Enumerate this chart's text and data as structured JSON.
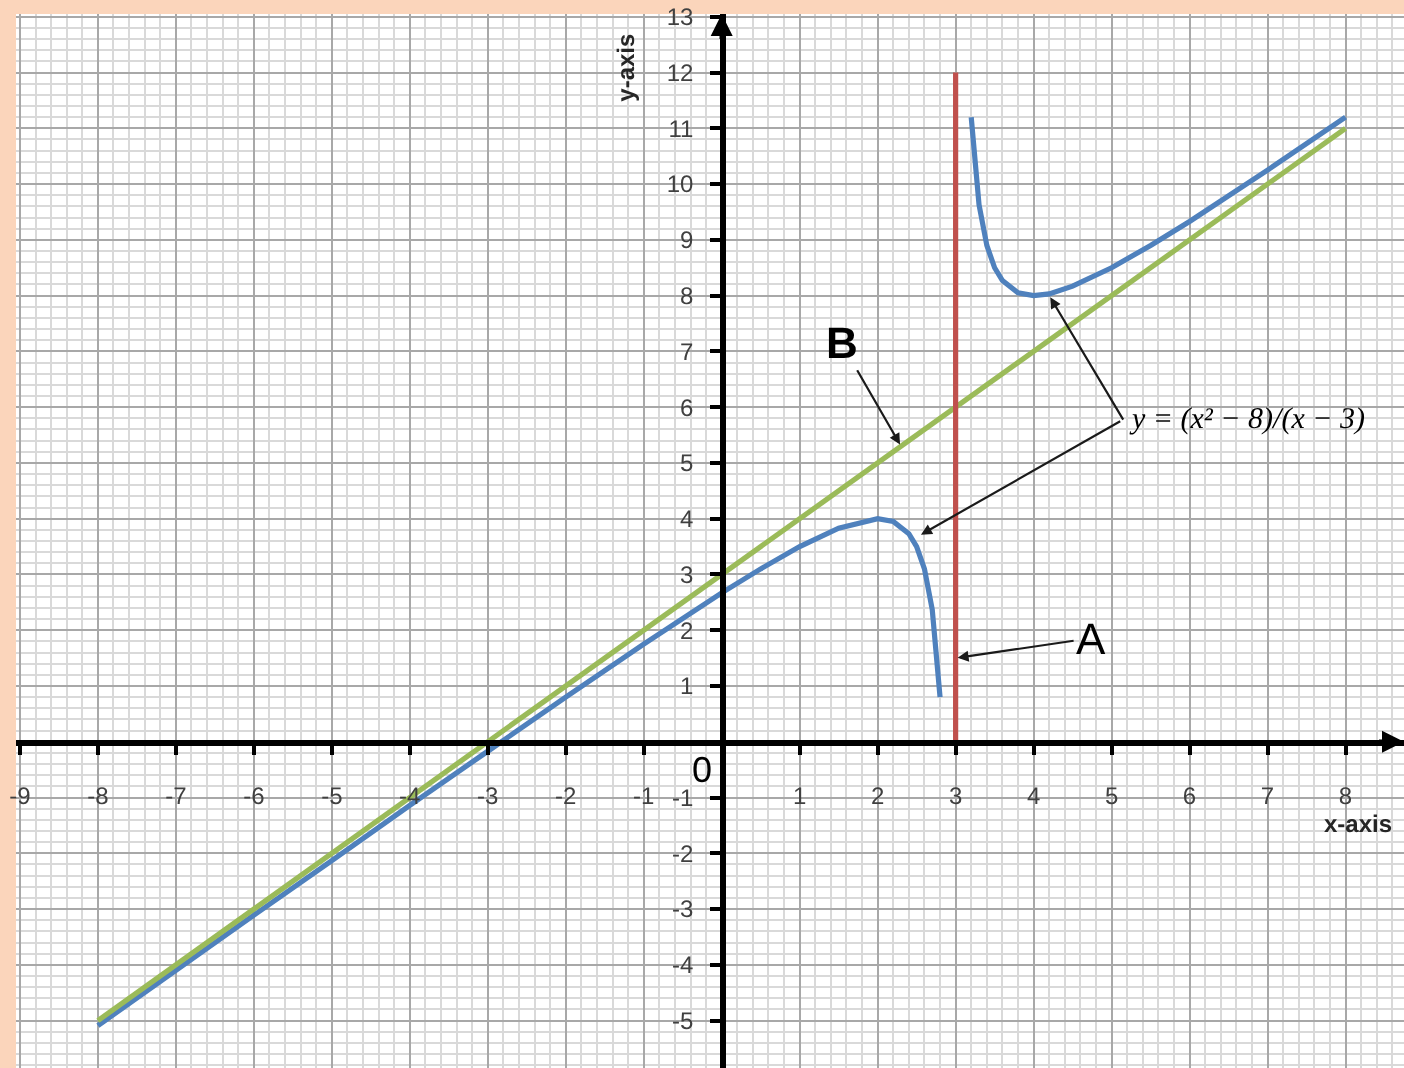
{
  "chart_data": {
    "type": "line",
    "xlabel": "x-axis",
    "ylabel": "y-axis",
    "xlim": [
      -9.05,
      8.75
    ],
    "ylim": [
      -5.85,
      13.05
    ],
    "xticks": [
      -9,
      -8,
      -7,
      -6,
      -5,
      -4,
      -3,
      -2,
      -1,
      1,
      2,
      3,
      4,
      5,
      6,
      7,
      8
    ],
    "yticks": [
      -5,
      -4,
      -3,
      -2,
      -1,
      1,
      2,
      3,
      4,
      5,
      6,
      7,
      8,
      9,
      10,
      11,
      12,
      13
    ],
    "grid": true,
    "series": [
      {
        "color": "#4f81bd",
        "x": [
          -8,
          -7,
          -6,
          -5,
          -4,
          -3,
          -2,
          -1,
          0,
          0.5,
          1,
          1.5,
          2,
          2.2,
          2.4,
          2.5,
          2.6,
          2.7,
          2.8,
          3,
          3.2,
          3.3,
          3.4,
          3.5,
          3.6,
          3.8,
          4,
          4.2,
          4.5,
          5,
          5.5,
          6,
          7,
          8
        ],
        "values": [
          -5.09,
          -4.1,
          -3.11,
          -2.13,
          -1.14,
          -0.17,
          0.8,
          1.75,
          2.67,
          3.1,
          3.5,
          3.83,
          4,
          3.95,
          3.73,
          3.5,
          3.1,
          2.37,
          0.8,
          null,
          11.2,
          9.63,
          8.9,
          8.5,
          8.27,
          8.05,
          8,
          8.03,
          8.17,
          8.5,
          8.9,
          9.33,
          10.25,
          11.2
        ]
      },
      {
        "color": "#9bbb59",
        "x": [
          -8,
          8
        ],
        "values": [
          -5,
          11
        ]
      },
      {
        "color": "#c0504d",
        "x": [
          3,
          3
        ],
        "values": [
          0,
          12
        ]
      }
    ],
    "annotations": [
      {
        "text": "A",
        "x": 3,
        "y": 1.5
      },
      {
        "text": "B",
        "x": 2.3,
        "y": 5.3
      },
      {
        "text": "y = (x² − 8)/(x − 3)",
        "x": 4.2,
        "y": 8
      },
      "0"
    ]
  }
}
